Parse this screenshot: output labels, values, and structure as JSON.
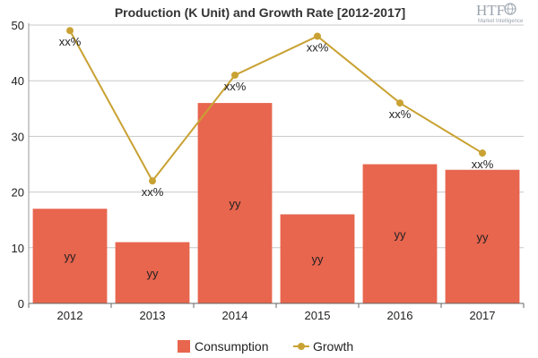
{
  "chart_data": {
    "type": "bar",
    "title": "Production (K Unit) and Growth Rate [2012-2017]",
    "categories": [
      "2012",
      "2013",
      "2014",
      "2015",
      "2016",
      "2017"
    ],
    "ylim": [
      0,
      50
    ],
    "yticks": [
      "0",
      "10",
      "20",
      "30",
      "40",
      "50"
    ],
    "grid": true,
    "legend_position": "bottom",
    "series": [
      {
        "name": "Consumption",
        "type": "bar",
        "color": "#e8654e",
        "values": [
          17,
          11,
          36,
          16,
          25,
          24
        ],
        "labels": [
          "yy",
          "yy",
          "yy",
          "yy",
          "yy",
          "yy"
        ]
      },
      {
        "name": "Growth",
        "type": "line",
        "color": "#c9a233",
        "values": [
          49,
          22,
          41,
          48,
          36,
          27
        ],
        "labels": [
          "xx%",
          "xx%",
          "xx%",
          "xx%",
          "xx%",
          "xx%"
        ]
      }
    ]
  },
  "logo": {
    "mark": "HTF",
    "tagline": "Market Intelligence",
    "icon": "globe-icon"
  }
}
